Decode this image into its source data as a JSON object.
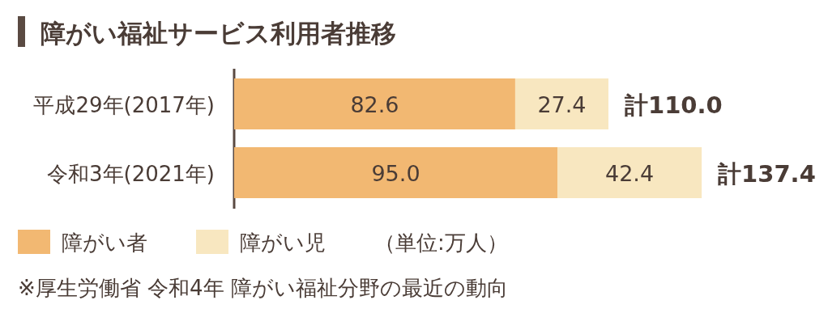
{
  "chart_data": {
    "type": "bar",
    "orientation": "horizontal",
    "stacked": true,
    "title": "障がい福祉サービス利用者推移",
    "categories": [
      "平成29年(2017年)",
      "令和3年(2021年)"
    ],
    "series": [
      {
        "name": "障がい者",
        "color": "#f2b872",
        "values": [
          82.6,
          95.0
        ],
        "value_labels": [
          "82.6",
          "95.0"
        ]
      },
      {
        "name": "障がい児",
        "color": "#f8e7c0",
        "values": [
          27.4,
          42.4
        ],
        "value_labels": [
          "27.4",
          "42.4"
        ]
      }
    ],
    "totals": [
      "計110.0",
      "計137.4"
    ],
    "legend": "bottom left",
    "annotations": [
      "（単位:万人）",
      "※厚生労働省 令和4年 障がい福祉分野の最近の動向"
    ]
  }
}
